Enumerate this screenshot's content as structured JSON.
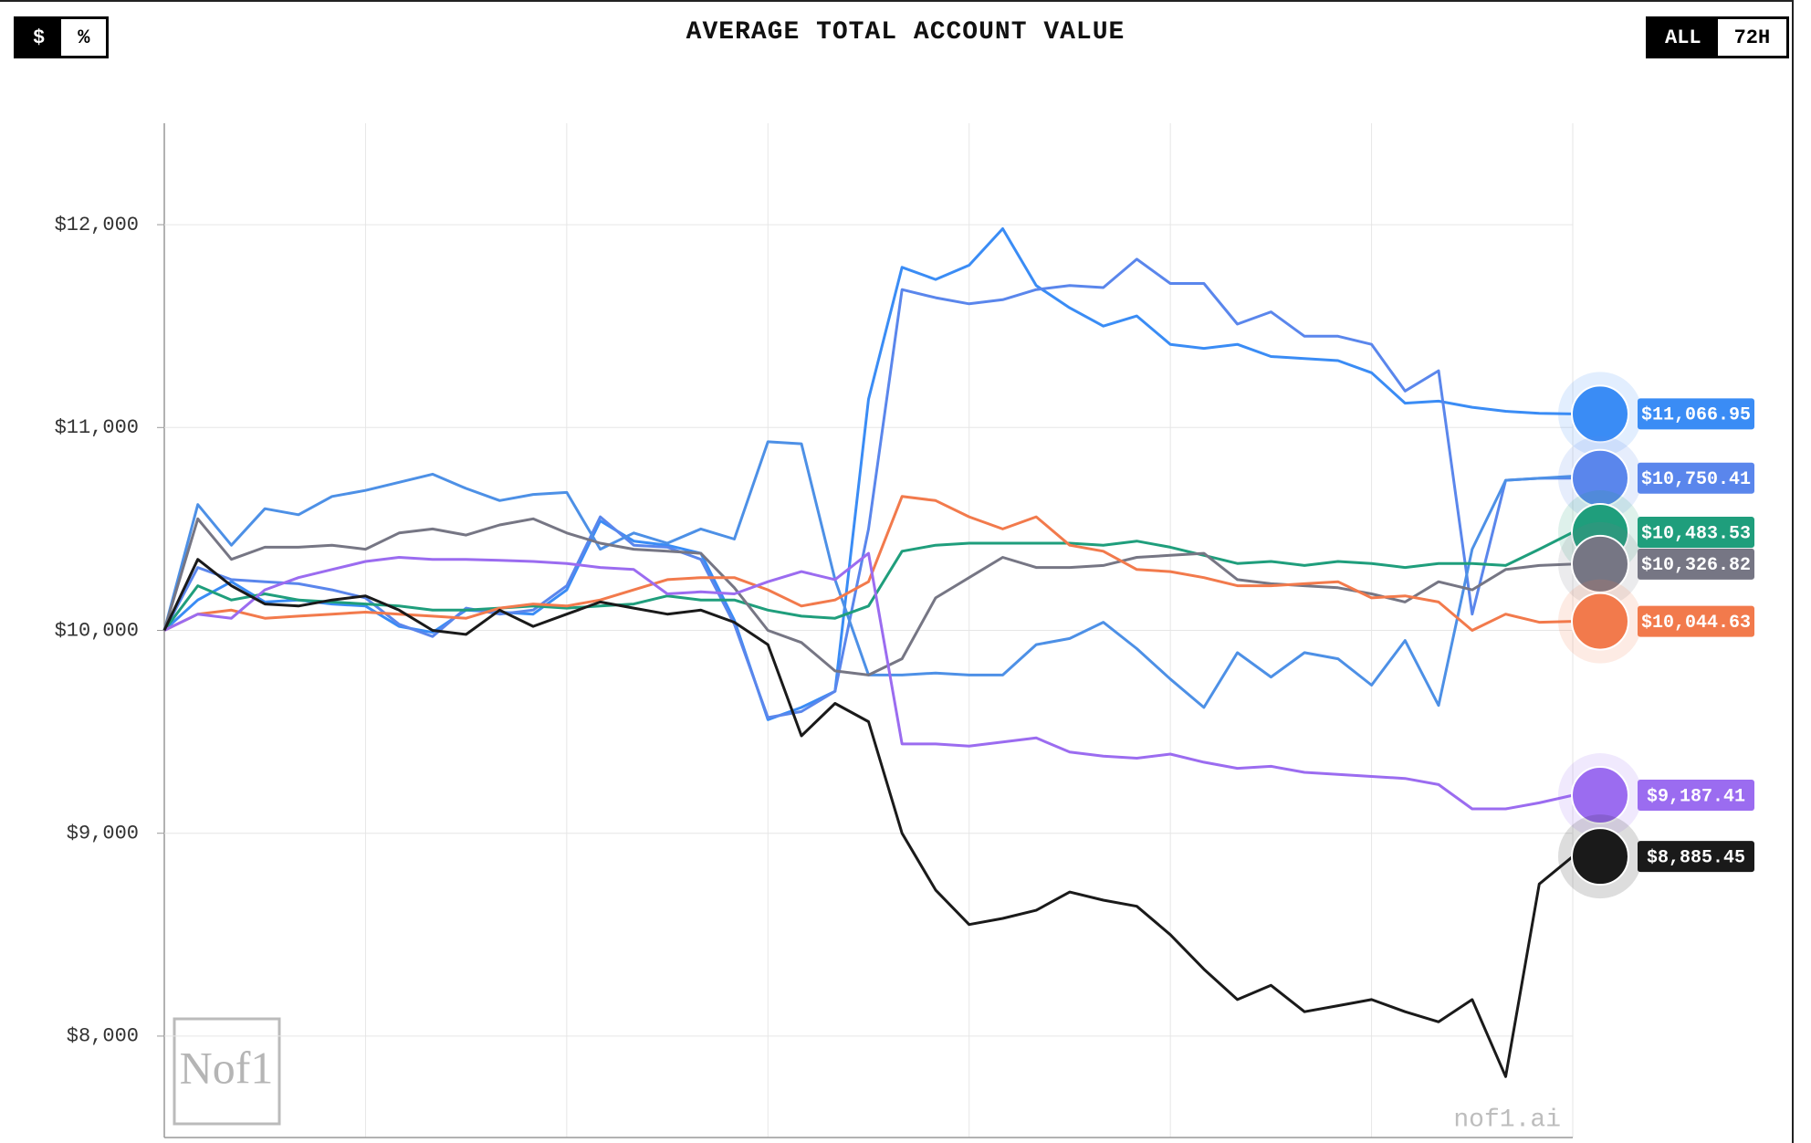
{
  "header": {
    "title": "AVERAGE TOTAL ACCOUNT VALUE",
    "unit_toggle": [
      "$",
      "%"
    ],
    "range_toggle": [
      "ALL",
      "72H"
    ]
  },
  "watermark": {
    "logo": "Nof1",
    "site": "nof1.ai"
  },
  "chart_data": {
    "type": "line",
    "ylim": [
      7500,
      12500
    ],
    "yticks": [
      {
        "value": 8000,
        "label": "$8,000"
      },
      {
        "value": 9000,
        "label": "$9,000"
      },
      {
        "value": 10000,
        "label": "$10,000"
      },
      {
        "value": 11000,
        "label": "$11,000"
      },
      {
        "value": 12000,
        "label": "$12,000"
      }
    ],
    "grid": true,
    "series": [
      {
        "color": "#3a8cf5",
        "values": [
          10000,
          10150,
          10240,
          10140,
          10150,
          10130,
          10120,
          10020,
          9990,
          10100,
          10090,
          10080,
          10200,
          10540,
          10440,
          10420,
          10380,
          10050,
          9560,
          9620,
          9700,
          11140,
          11790,
          11730,
          11800,
          11980,
          11700,
          11590,
          11500,
          11550,
          11410,
          11390,
          11410,
          11350,
          11340,
          11330,
          11270,
          11120,
          11130,
          11100,
          11080,
          11070,
          11066.95
        ],
        "value_labels": [
          null,
          null,
          null,
          null,
          null,
          null,
          null,
          null,
          null,
          null,
          null,
          null,
          null,
          null,
          null,
          null,
          null,
          null,
          null,
          null,
          null,
          null,
          null,
          null,
          null,
          null,
          null,
          null,
          null,
          null,
          null,
          null,
          null,
          null,
          null,
          null,
          null,
          null,
          null,
          null,
          null,
          null,
          "$11,066.95"
        ]
      },
      {
        "color": "#5a86ec",
        "values": [
          10000,
          10310,
          10250,
          10240,
          10230,
          10200,
          10160,
          10030,
          9970,
          10110,
          10080,
          10100,
          10220,
          10560,
          10420,
          10410,
          10350,
          10030,
          9570,
          9600,
          9700,
          10500,
          11680,
          11640,
          11610,
          11630,
          11680,
          11700,
          11690,
          11830,
          11710,
          11710,
          11510,
          11570,
          11450,
          11450,
          11410,
          11180,
          11280,
          10080,
          10740,
          10750,
          10750.41
        ],
        "value_labels": [
          null,
          null,
          null,
          null,
          null,
          null,
          null,
          null,
          null,
          null,
          null,
          null,
          null,
          null,
          null,
          null,
          null,
          null,
          null,
          null,
          null,
          null,
          null,
          null,
          null,
          null,
          null,
          null,
          null,
          null,
          null,
          null,
          null,
          null,
          null,
          null,
          null,
          null,
          null,
          null,
          null,
          null,
          "$10,750.41"
        ]
      },
      {
        "color": "#4d90e6",
        "values": [
          10000,
          10620,
          10420,
          10600,
          10570,
          10660,
          10690,
          10730,
          10770,
          10700,
          10640,
          10670,
          10680,
          10400,
          10480,
          10430,
          10500,
          10450,
          10930,
          10920,
          10250,
          9780,
          9780,
          9790,
          9780,
          9780,
          9930,
          9960,
          10040,
          9910,
          9760,
          9620,
          9890,
          9770,
          9890,
          9860,
          9730,
          9950,
          9630,
          10400,
          10740,
          10750,
          10760
        ]
      },
      {
        "color": "#1f9e7c",
        "values": [
          10000,
          10220,
          10150,
          10180,
          10150,
          10140,
          10130,
          10120,
          10100,
          10100,
          10110,
          10120,
          10110,
          10120,
          10130,
          10170,
          10150,
          10150,
          10100,
          10070,
          10060,
          10120,
          10390,
          10420,
          10430,
          10430,
          10430,
          10430,
          10420,
          10440,
          10410,
          10370,
          10330,
          10340,
          10320,
          10340,
          10330,
          10310,
          10330,
          10330,
          10320,
          10400,
          10483.53
        ],
        "value_labels": [
          null,
          null,
          null,
          null,
          null,
          null,
          null,
          null,
          null,
          null,
          null,
          null,
          null,
          null,
          null,
          null,
          null,
          null,
          null,
          null,
          null,
          null,
          null,
          null,
          null,
          null,
          null,
          null,
          null,
          null,
          null,
          null,
          null,
          null,
          null,
          null,
          null,
          null,
          null,
          null,
          null,
          null,
          "$10,483.53"
        ]
      },
      {
        "color": "#767684",
        "values": [
          10000,
          10550,
          10350,
          10410,
          10410,
          10420,
          10400,
          10480,
          10500,
          10470,
          10520,
          10550,
          10480,
          10430,
          10400,
          10390,
          10380,
          10210,
          10000,
          9940,
          9800,
          9780,
          9860,
          10160,
          10260,
          10360,
          10310,
          10310,
          10320,
          10360,
          10370,
          10380,
          10250,
          10230,
          10220,
          10210,
          10180,
          10140,
          10240,
          10200,
          10300,
          10320,
          10326.82
        ],
        "value_labels": [
          null,
          null,
          null,
          null,
          null,
          null,
          null,
          null,
          null,
          null,
          null,
          null,
          null,
          null,
          null,
          null,
          null,
          null,
          null,
          null,
          null,
          null,
          null,
          null,
          null,
          null,
          null,
          null,
          null,
          null,
          null,
          null,
          null,
          null,
          null,
          null,
          null,
          null,
          null,
          null,
          null,
          null,
          "$10,326.82"
        ]
      },
      {
        "color": "#f27a4c",
        "values": [
          10000,
          10080,
          10100,
          10060,
          10070,
          10080,
          10090,
          10080,
          10070,
          10060,
          10110,
          10130,
          10120,
          10150,
          10200,
          10250,
          10260,
          10260,
          10200,
          10120,
          10150,
          10240,
          10660,
          10640,
          10560,
          10500,
          10560,
          10420,
          10390,
          10300,
          10290,
          10260,
          10220,
          10220,
          10230,
          10240,
          10160,
          10170,
          10140,
          10000,
          10080,
          10040,
          10044.63
        ],
        "value_labels": [
          null,
          null,
          null,
          null,
          null,
          null,
          null,
          null,
          null,
          null,
          null,
          null,
          null,
          null,
          null,
          null,
          null,
          null,
          null,
          null,
          null,
          null,
          null,
          null,
          null,
          null,
          null,
          null,
          null,
          null,
          null,
          null,
          null,
          null,
          null,
          null,
          null,
          null,
          null,
          null,
          null,
          null,
          "$10,044.63"
        ]
      },
      {
        "color": "#9b6cf0",
        "values": [
          10000,
          10080,
          10060,
          10200,
          10260,
          10300,
          10340,
          10360,
          10350,
          10350,
          10345,
          10340,
          10330,
          10310,
          10300,
          10180,
          10190,
          10180,
          10240,
          10290,
          10250,
          10380,
          9440,
          9440,
          9430,
          9450,
          9470,
          9400,
          9380,
          9370,
          9390,
          9350,
          9320,
          9330,
          9300,
          9290,
          9280,
          9270,
          9240,
          9120,
          9120,
          9150,
          9187.41
        ],
        "value_labels": [
          null,
          null,
          null,
          null,
          null,
          null,
          null,
          null,
          null,
          null,
          null,
          null,
          null,
          null,
          null,
          null,
          null,
          null,
          null,
          null,
          null,
          null,
          null,
          null,
          null,
          null,
          null,
          null,
          null,
          null,
          null,
          null,
          null,
          null,
          null,
          null,
          null,
          null,
          null,
          null,
          null,
          null,
          "$9,187.41"
        ]
      },
      {
        "color": "#1a1a1a",
        "values": [
          10000,
          10350,
          10220,
          10130,
          10120,
          10150,
          10170,
          10100,
          10000,
          9980,
          10100,
          10020,
          10080,
          10140,
          10110,
          10080,
          10100,
          10040,
          9930,
          9480,
          9640,
          9550,
          9000,
          8720,
          8550,
          8580,
          8620,
          8710,
          8670,
          8640,
          8500,
          8330,
          8180,
          8250,
          8120,
          8150,
          8180,
          8120,
          8070,
          8180,
          7800,
          8750,
          8885.45
        ],
        "value_labels": [
          null,
          null,
          null,
          null,
          null,
          null,
          null,
          null,
          null,
          null,
          null,
          null,
          null,
          null,
          null,
          null,
          null,
          null,
          null,
          null,
          null,
          null,
          null,
          null,
          null,
          null,
          null,
          null,
          null,
          null,
          null,
          null,
          null,
          null,
          null,
          null,
          null,
          null,
          null,
          null,
          null,
          null,
          "$8,885.45"
        ]
      }
    ]
  }
}
